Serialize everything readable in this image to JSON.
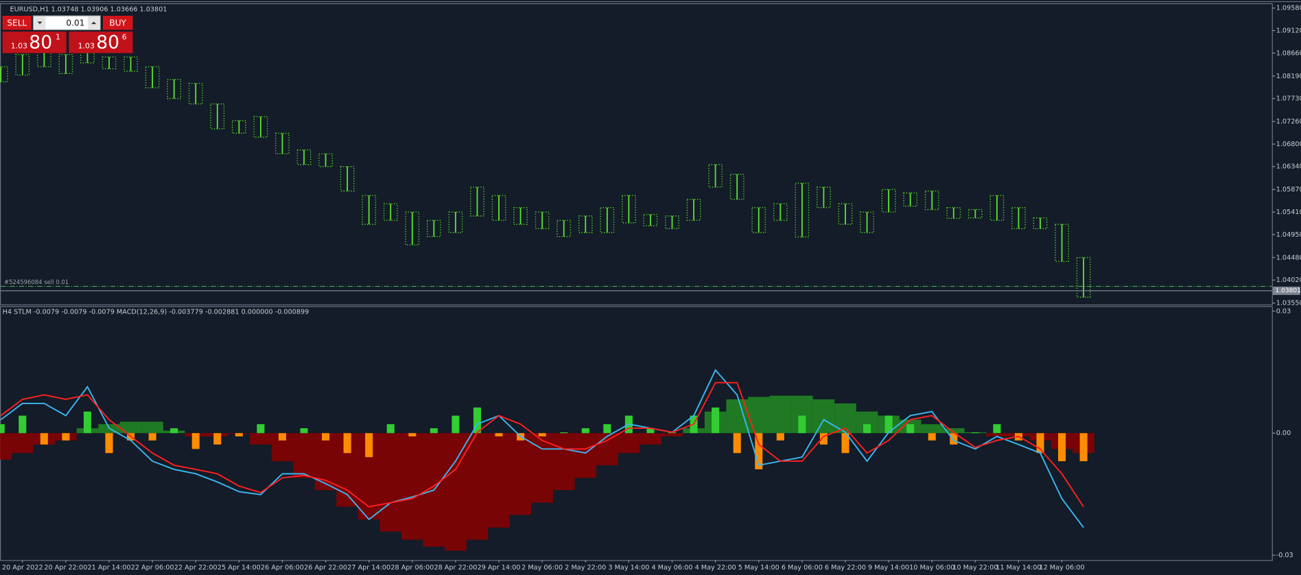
{
  "trade": {
    "sell": "SELL",
    "buy": "BUY",
    "lot": "0.01",
    "bid": {
      "prefix": "1.03",
      "big": "80",
      "small": "1"
    },
    "ask": {
      "prefix": "1.03",
      "big": "80",
      "small": "6"
    }
  },
  "chart_data": [
    {
      "type": "range",
      "title": "EURUSD,H1  1.03748 1.03906 1.03666 1.03801",
      "color": "#5ee32b",
      "x": [
        0,
        1,
        2,
        3,
        4,
        5,
        6,
        7,
        8,
        9,
        10,
        11,
        12,
        13,
        14,
        15,
        16,
        17,
        18,
        19,
        20,
        21,
        22,
        23,
        24,
        25,
        26,
        27,
        28,
        29,
        30,
        31,
        32,
        33,
        34,
        35,
        36,
        37,
        38,
        39,
        40,
        41,
        42,
        43,
        44,
        45,
        46,
        47,
        48,
        49,
        50
      ],
      "high": [
        1.0838,
        1.0863,
        1.0868,
        1.0863,
        1.0889,
        1.0858,
        1.0858,
        1.0838,
        1.0812,
        1.0804,
        1.0762,
        1.0728,
        1.0736,
        1.0702,
        1.0668,
        1.066,
        1.0634,
        1.0575,
        1.0558,
        1.0541,
        1.0524,
        1.0541,
        1.0592,
        1.0575,
        1.055,
        1.0541,
        1.0524,
        1.0533,
        1.055,
        1.0575,
        1.0536,
        1.0533,
        1.0567,
        1.0638,
        1.0618,
        1.055,
        1.0558,
        1.06,
        1.0592,
        1.0558,
        1.0541,
        1.0587,
        1.058,
        1.0584,
        1.055,
        1.0546,
        1.0575,
        1.055,
        1.0529,
        1.0516,
        1.0448
      ],
      "low": [
        1.0807,
        1.0821,
        1.0838,
        1.0824,
        1.0846,
        1.0834,
        1.0829,
        1.0795,
        1.0773,
        1.0762,
        1.0711,
        1.0702,
        1.0694,
        1.066,
        1.0638,
        1.0634,
        1.0584,
        1.0516,
        1.0524,
        1.0474,
        1.0491,
        1.0499,
        1.0533,
        1.0524,
        1.0516,
        1.0507,
        1.0491,
        1.0499,
        1.0499,
        1.0519,
        1.0513,
        1.0507,
        1.0524,
        1.0592,
        1.0567,
        1.0499,
        1.0524,
        1.049,
        1.055,
        1.0516,
        1.0499,
        1.0541,
        1.0553,
        1.0546,
        1.0528,
        1.0529,
        1.0524,
        1.0507,
        1.0507,
        1.044,
        1.0367
      ],
      "xlim": [
        0,
        58.7
      ],
      "ylim": [
        1.0352,
        1.0966
      ],
      "yticks": [
        {
          "value": 1.0958,
          "label": "1.09580"
        },
        {
          "value": 1.0912,
          "label": "1.09120"
        },
        {
          "value": 1.0866,
          "label": "1.08660"
        },
        {
          "value": 1.0819,
          "label": "1.08190"
        },
        {
          "value": 1.0773,
          "label": "1.07730"
        },
        {
          "value": 1.0726,
          "label": "1.07260"
        },
        {
          "value": 1.068,
          "label": "1.06800"
        },
        {
          "value": 1.0634,
          "label": "1.06340"
        },
        {
          "value": 1.0587,
          "label": "1.05870"
        },
        {
          "value": 1.0541,
          "label": "1.05410"
        },
        {
          "value": 1.0495,
          "label": "1.04950"
        },
        {
          "value": 1.0448,
          "label": "1.04480"
        },
        {
          "value": 1.0402,
          "label": "1.04020"
        },
        {
          "value": 1.0355,
          "label": "1.03550"
        }
      ],
      "order_label": "#524596084 sell 0.01",
      "order_price": 1.0389,
      "last_price": 1.03801
    },
    {
      "type": "combo",
      "title": "H4 STLM -0.0079 -0.0079 -0.0079  MACD(12,26,9) -0.003779 -0.002881 0.000000 -0.000899",
      "x": [
        0,
        1,
        2,
        3,
        4,
        5,
        6,
        7,
        8,
        9,
        10,
        11,
        12,
        13,
        14,
        15,
        16,
        17,
        18,
        19,
        20,
        21,
        22,
        23,
        24,
        25,
        26,
        27,
        28,
        29,
        30,
        31,
        32,
        33,
        34,
        35,
        36,
        37,
        38,
        39,
        40,
        41,
        42,
        43,
        44,
        45,
        46,
        47,
        48,
        49,
        50
      ],
      "series": [
        {
          "type": "bar",
          "color": "#228b22",
          "color_negative": "#8b0000",
          "values": [
            -0.0065,
            -0.0049,
            -0.0028,
            -0.0018,
            0.0012,
            0.0022,
            0.0028,
            0.0028,
            0.0006,
            -0.0008,
            -0.0008,
            -0.0002,
            -0.0028,
            -0.0069,
            -0.011,
            -0.014,
            -0.0181,
            -0.0212,
            -0.0242,
            -0.0262,
            -0.0279,
            -0.0289,
            -0.0262,
            -0.0232,
            -0.0201,
            -0.0171,
            -0.014,
            -0.011,
            -0.0079,
            -0.0049,
            -0.0028,
            -0.0008,
            0.0012,
            0.0053,
            0.0083,
            0.0089,
            0.0092,
            0.0092,
            0.0083,
            0.0073,
            0.0053,
            0.0043,
            0.0033,
            0.0022,
            0.0012,
            0.0002,
            -0.0008,
            -0.0008,
            -0.0018,
            -0.0039,
            -0.0049
          ]
        },
        {
          "type": "bar",
          "color": "#32cd32",
          "color_negative": "#ff8c00",
          "values": [
            0.0022,
            0.0043,
            -0.0028,
            -0.0018,
            0.0053,
            -0.0049,
            -0.0018,
            -0.0018,
            0.0012,
            -0.0039,
            -0.0028,
            -0.0008,
            0.0022,
            -0.0018,
            0.0012,
            -0.0018,
            -0.0049,
            -0.0059,
            0.0022,
            -0.0008,
            0.0012,
            0.0043,
            0.0063,
            -0.0008,
            -0.0018,
            -0.0008,
            0.0002,
            0.0012,
            0.0022,
            0.0043,
            0.0012,
            0.0002,
            0.0043,
            0.0063,
            -0.0049,
            -0.0089,
            -0.0018,
            0.0043,
            -0.0028,
            -0.0049,
            0.0022,
            0.0043,
            0.0022,
            -0.0018,
            -0.0028,
            0.0002,
            0.0022,
            -0.0018,
            -0.0049,
            -0.0069,
            -0.0069
          ]
        },
        {
          "type": "line",
          "color": "#3cb6f0",
          "values": [
            0.0033,
            0.0073,
            0.0073,
            0.0043,
            0.0114,
            0.0012,
            -0.0018,
            -0.0069,
            -0.0089,
            -0.01,
            -0.012,
            -0.0144,
            -0.0151,
            -0.01,
            -0.01,
            -0.0124,
            -0.0151,
            -0.0212,
            -0.0171,
            -0.0157,
            -0.014,
            -0.0069,
            0.0022,
            0.0043,
            -0.0008,
            -0.0039,
            -0.0039,
            -0.0049,
            -0.0008,
            0.0022,
            0.0012,
            0.0002,
            0.0043,
            0.0155,
            0.0094,
            -0.0079,
            -0.0069,
            -0.0059,
            0.0033,
            0.0002,
            -0.0069,
            0.0002,
            0.0043,
            0.0053,
            -0.0018,
            -0.0039,
            -0.0008,
            -0.0028,
            -0.0049,
            -0.0161,
            -0.0232
          ]
        },
        {
          "type": "line",
          "color": "#ff2020",
          "values": [
            0.0043,
            0.0083,
            0.0094,
            0.0083,
            0.0094,
            0.0033,
            -0.0008,
            -0.0049,
            -0.0079,
            -0.0089,
            -0.01,
            -0.013,
            -0.0146,
            -0.011,
            -0.0104,
            -0.0116,
            -0.014,
            -0.0181,
            -0.0171,
            -0.0161,
            -0.013,
            -0.0089,
            0.0002,
            0.0043,
            0.0022,
            -0.0018,
            -0.0039,
            -0.0039,
            -0.0018,
            0.0012,
            0.0012,
            0.0002,
            0.0022,
            0.0124,
            0.0124,
            -0.0028,
            -0.0069,
            -0.0069,
            -0.0008,
            0.0012,
            -0.0049,
            -0.0018,
            0.0033,
            0.0043,
            0.0002,
            -0.0035,
            -0.0018,
            -0.0008,
            -0.0039,
            -0.01,
            -0.0181
          ]
        }
      ],
      "xlim": [
        0,
        58.7
      ],
      "ylim": [
        -0.0312,
        0.031
      ],
      "yticks": [
        0.03,
        {
          "value": 0,
          "label": "0.00"
        },
        -0.03
      ],
      "xticks": [
        {
          "value": 1,
          "label": "20 Apr 2022"
        },
        {
          "value": 3,
          "label": "20 Apr 22:00"
        },
        {
          "value": 5,
          "label": "21 Apr 14:00"
        },
        {
          "value": 7,
          "label": "22 Apr 06:00"
        },
        {
          "value": 9,
          "label": "22 Apr 22:00"
        },
        {
          "value": 11,
          "label": "25 Apr 14:00"
        },
        {
          "value": 13,
          "label": "26 Apr 06:00"
        },
        {
          "value": 15,
          "label": "26 Apr 22:00"
        },
        {
          "value": 17,
          "label": "27 Apr 14:00"
        },
        {
          "value": 19,
          "label": "28 Apr 06:00"
        },
        {
          "value": 21,
          "label": "28 Apr 22:00"
        },
        {
          "value": 23,
          "label": "29 Apr 14:00"
        },
        {
          "value": 25,
          "label": "2 May 06:00"
        },
        {
          "value": 27,
          "label": "2 May 22:00"
        },
        {
          "value": 29,
          "label": "3 May 14:00"
        },
        {
          "value": 31,
          "label": "4 May 06:00"
        },
        {
          "value": 33,
          "label": "4 May 22:00"
        },
        {
          "value": 35,
          "label": "5 May 14:00"
        },
        {
          "value": 37,
          "label": "6 May 06:00"
        },
        {
          "value": 39,
          "label": "6 May 22:00"
        },
        {
          "value": 41,
          "label": "9 May 14:00"
        },
        {
          "value": 43,
          "label": "10 May 06:00"
        },
        {
          "value": 45,
          "label": "10 May 22:00"
        },
        {
          "value": 47,
          "label": "11 May 14:00"
        },
        {
          "value": 49,
          "label": "12 May 06:00"
        }
      ]
    }
  ]
}
